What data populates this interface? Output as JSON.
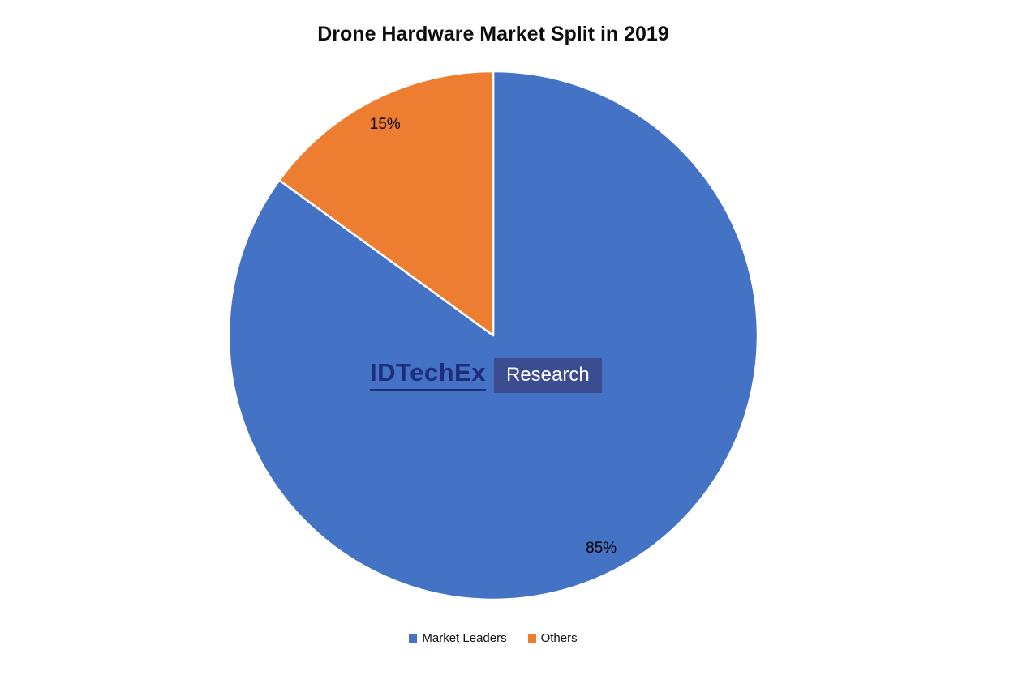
{
  "chart_data": {
    "type": "pie",
    "title": "Drone Hardware Market Split in 2019",
    "categories": [
      "Market Leaders",
      "Others"
    ],
    "values": [
      85,
      15
    ],
    "slices": [
      {
        "label": "Market Leaders",
        "value": 85,
        "percent_label": "85%",
        "color": "#4472C4"
      },
      {
        "label": "Others",
        "value": 15,
        "percent_label": "15%",
        "color": "#ED7D31"
      }
    ],
    "start_angle_deg": 0,
    "direction": "clockwise",
    "data_labels": "percent, inside",
    "legend_position": "bottom",
    "background": "#FFFFFF"
  },
  "watermark": {
    "brand": "IDTechEx",
    "suffix": "Research",
    "brand_color": "#1F2D7B",
    "suffix_bg": "rgba(60, 72, 140, 0.9)",
    "suffix_color": "#FFFFFF"
  }
}
